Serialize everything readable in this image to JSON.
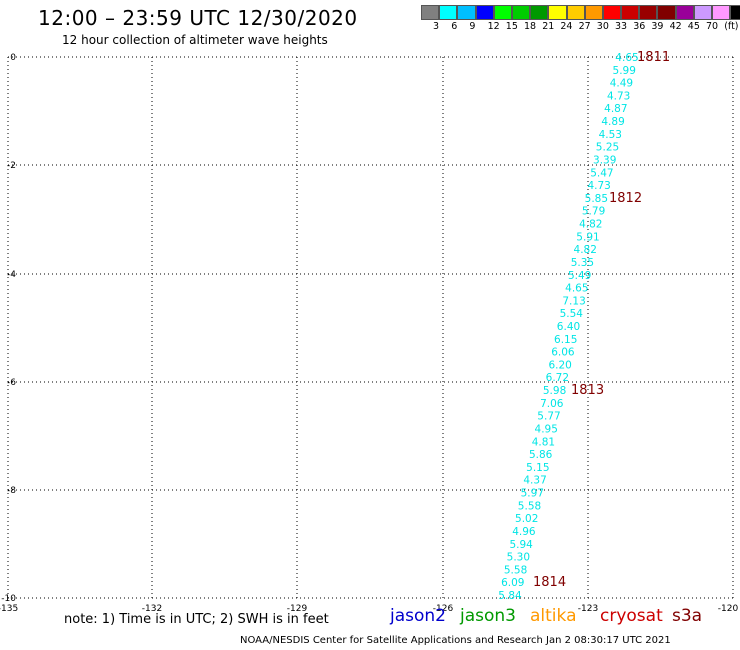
{
  "header": {
    "title": "12:00 – 23:59 UTC 12/30/2020",
    "subtitle": "12 hour collection of altimeter wave heights"
  },
  "color_scale": {
    "colors": [
      "#808080",
      "#00ffff",
      "#00bfff",
      "#0000ff",
      "#00ff00",
      "#00cc00",
      "#009900",
      "#ffff00",
      "#ffcc00",
      "#ff9900",
      "#ff0000",
      "#cc0000",
      "#990000",
      "#800000",
      "#990099",
      "#cc99ff",
      "#ff99ff",
      "#000000"
    ],
    "labels": [
      "3",
      "6",
      "9",
      "12",
      "15",
      "18",
      "21",
      "24",
      "27",
      "30",
      "33",
      "36",
      "39",
      "42",
      "45",
      "70",
      "(ft)"
    ]
  },
  "axes": {
    "x_ticks": [
      "-135",
      "-132",
      "-129",
      "-126",
      "-123",
      "-120"
    ],
    "y_ticks": [
      "0",
      "-2",
      "-4",
      "-6",
      "-8",
      "-10"
    ]
  },
  "track": {
    "color": "#00e5e5",
    "heights": [
      "4.65",
      "5.99",
      "4.49",
      "4.73",
      "4.87",
      "4.89",
      "4.53",
      "5.25",
      "3.39",
      "5.47",
      "4.73",
      "5.85",
      "5.79",
      "4.82",
      "5.91",
      "4.82",
      "5.35",
      "5.49",
      "4.65",
      "7.13",
      "5.54",
      "6.40",
      "6.15",
      "6.06",
      "6.20",
      "6.72",
      "5.98",
      "7.06",
      "5.77",
      "4.95",
      "4.81",
      "5.86",
      "5.15",
      "4.37",
      "5.97",
      "5.58",
      "5.02",
      "4.96",
      "5.94",
      "5.30",
      "5.58",
      "6.09",
      "5.84"
    ],
    "time_labels": [
      "1811",
      "1812",
      "1813",
      "1814"
    ],
    "time_color": "#800000"
  },
  "note": "note:  1) Time is in UTC;  2) SWH is in feet",
  "satellites": [
    {
      "name": "jason2",
      "color": "#0000cc"
    },
    {
      "name": "jason3",
      "color": "#009900"
    },
    {
      "name": "altika",
      "color": "#ff9900"
    },
    {
      "name": "cryosat",
      "color": "#cc0000"
    },
    {
      "name": "s3a",
      "color": "#800000"
    }
  ],
  "footer": "NOAA/NESDIS Center for Satellite Applications and Research    Jan  2 08:30:17 UTC 2021"
}
